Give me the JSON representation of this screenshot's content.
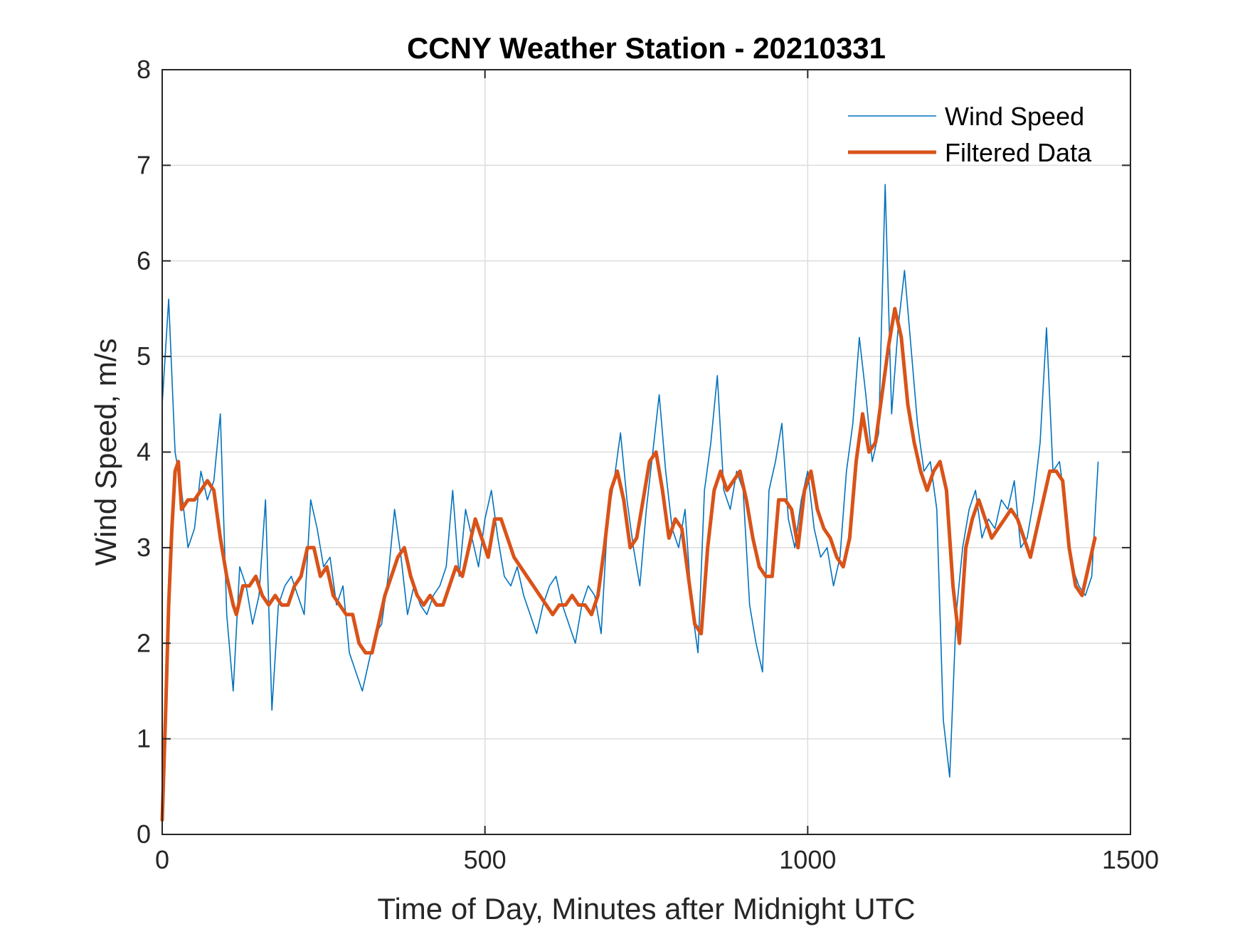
{
  "chart_data": {
    "type": "line",
    "title": "CCNY Weather Station - 20210331",
    "xlabel": "Time of Day, Minutes after Midnight UTC",
    "ylabel": "Wind Speed, m/s",
    "xlim": [
      0,
      1500
    ],
    "ylim": [
      0,
      8
    ],
    "xticks": [
      0,
      500,
      1000,
      1500
    ],
    "xtick_labels": [
      "0",
      "500",
      "1000",
      "1500"
    ],
    "yticks": [
      0,
      1,
      2,
      3,
      4,
      5,
      6,
      7,
      8
    ],
    "ytick_labels": [
      "0",
      "1",
      "2",
      "3",
      "4",
      "5",
      "6",
      "7",
      "8"
    ],
    "grid": true,
    "legend_position": "top-right",
    "colors": {
      "wind": "#0072BD",
      "filtered": "#D95319",
      "grid": "#dcdcdc",
      "axis": "#262626"
    },
    "series": [
      {
        "name": "Wind Speed",
        "x_start": 0,
        "x_step": 10,
        "values": [
          4.5,
          5.6,
          4.0,
          3.6,
          3.0,
          3.2,
          3.8,
          3.5,
          3.7,
          4.4,
          2.3,
          1.5,
          2.8,
          2.6,
          2.2,
          2.5,
          3.5,
          1.3,
          2.4,
          2.6,
          2.7,
          2.5,
          2.3,
          3.5,
          3.2,
          2.8,
          2.9,
          2.4,
          2.6,
          1.9,
          1.7,
          1.5,
          1.8,
          2.1,
          2.2,
          2.7,
          3.4,
          2.9,
          2.3,
          2.6,
          2.4,
          2.3,
          2.5,
          2.6,
          2.8,
          3.6,
          2.7,
          3.4,
          3.1,
          2.8,
          3.3,
          3.6,
          3.1,
          2.7,
          2.6,
          2.8,
          2.5,
          2.3,
          2.1,
          2.4,
          2.6,
          2.7,
          2.4,
          2.2,
          2.0,
          2.4,
          2.6,
          2.5,
          2.1,
          3.3,
          3.7,
          4.2,
          3.5,
          3.0,
          2.6,
          3.4,
          4.0,
          4.6,
          3.8,
          3.2,
          3.0,
          3.4,
          2.4,
          1.9,
          3.6,
          4.1,
          4.8,
          3.6,
          3.4,
          3.8,
          3.6,
          2.4,
          2.0,
          1.7,
          3.6,
          3.9,
          4.3,
          3.3,
          3.0,
          3.5,
          3.8,
          3.2,
          2.9,
          3.0,
          2.6,
          2.9,
          3.8,
          4.3,
          5.2,
          4.6,
          3.9,
          4.2,
          6.8,
          4.4,
          5.3,
          5.9,
          5.1,
          4.3,
          3.8,
          3.9,
          3.4,
          1.2,
          0.6,
          2.3,
          3.0,
          3.4,
          3.6,
          3.1,
          3.3,
          3.2,
          3.5,
          3.4,
          3.7,
          3.0,
          3.1,
          3.5,
          4.1,
          5.3,
          3.8,
          3.9,
          3.4,
          2.8,
          2.6,
          2.5,
          2.7,
          3.9
        ]
      },
      {
        "name": "Filtered Data",
        "x": [
          0,
          5,
          10,
          15,
          20,
          25,
          30,
          40,
          50,
          60,
          70,
          80,
          90,
          100,
          110,
          115,
          125,
          135,
          145,
          155,
          165,
          175,
          185,
          195,
          205,
          215,
          225,
          235,
          245,
          255,
          265,
          275,
          285,
          295,
          305,
          315,
          325,
          335,
          345,
          355,
          365,
          375,
          385,
          395,
          405,
          415,
          425,
          435,
          445,
          455,
          465,
          475,
          485,
          495,
          505,
          515,
          525,
          535,
          545,
          555,
          565,
          575,
          585,
          595,
          605,
          615,
          625,
          635,
          645,
          655,
          665,
          675,
          685,
          695,
          705,
          715,
          725,
          735,
          745,
          755,
          765,
          775,
          785,
          795,
          805,
          815,
          825,
          835,
          845,
          855,
          865,
          875,
          885,
          895,
          905,
          915,
          925,
          935,
          945,
          955,
          965,
          975,
          985,
          995,
          1005,
          1015,
          1025,
          1035,
          1045,
          1055,
          1065,
          1075,
          1085,
          1095,
          1105,
          1115,
          1125,
          1135,
          1145,
          1155,
          1165,
          1175,
          1185,
          1195,
          1205,
          1215,
          1225,
          1235,
          1245,
          1255,
          1265,
          1275,
          1285,
          1295,
          1305,
          1315,
          1325,
          1335,
          1345,
          1355,
          1365,
          1375,
          1385,
          1395,
          1405,
          1415,
          1425,
          1435,
          1445
        ],
        "values": [
          0.15,
          1.2,
          2.4,
          3.2,
          3.8,
          3.9,
          3.4,
          3.5,
          3.5,
          3.6,
          3.7,
          3.6,
          3.1,
          2.7,
          2.4,
          2.3,
          2.6,
          2.6,
          2.7,
          2.5,
          2.4,
          2.5,
          2.4,
          2.4,
          2.6,
          2.7,
          3.0,
          3.0,
          2.7,
          2.8,
          2.5,
          2.4,
          2.3,
          2.3,
          2.0,
          1.9,
          1.9,
          2.2,
          2.5,
          2.7,
          2.9,
          3.0,
          2.7,
          2.5,
          2.4,
          2.5,
          2.4,
          2.4,
          2.6,
          2.8,
          2.7,
          3.0,
          3.3,
          3.1,
          2.9,
          3.3,
          3.3,
          3.1,
          2.9,
          2.8,
          2.7,
          2.6,
          2.5,
          2.4,
          2.3,
          2.4,
          2.4,
          2.5,
          2.4,
          2.4,
          2.3,
          2.5,
          3.0,
          3.6,
          3.8,
          3.5,
          3.0,
          3.1,
          3.5,
          3.9,
          4.0,
          3.6,
          3.1,
          3.3,
          3.2,
          2.7,
          2.2,
          2.1,
          3.0,
          3.6,
          3.8,
          3.6,
          3.7,
          3.8,
          3.5,
          3.1,
          2.8,
          2.7,
          2.7,
          3.5,
          3.5,
          3.4,
          3.0,
          3.6,
          3.8,
          3.4,
          3.2,
          3.1,
          2.9,
          2.8,
          3.1,
          3.9,
          4.4,
          4.0,
          4.1,
          4.6,
          5.1,
          5.5,
          5.2,
          4.5,
          4.1,
          3.8,
          3.6,
          3.8,
          3.9,
          3.6,
          2.6,
          2.0,
          3.0,
          3.3,
          3.5,
          3.3,
          3.1,
          3.2,
          3.3,
          3.4,
          3.3,
          3.1,
          2.9,
          3.2,
          3.5,
          3.8,
          3.8,
          3.7,
          3.0,
          2.6,
          2.5,
          2.8,
          3.1
        ]
      }
    ]
  }
}
